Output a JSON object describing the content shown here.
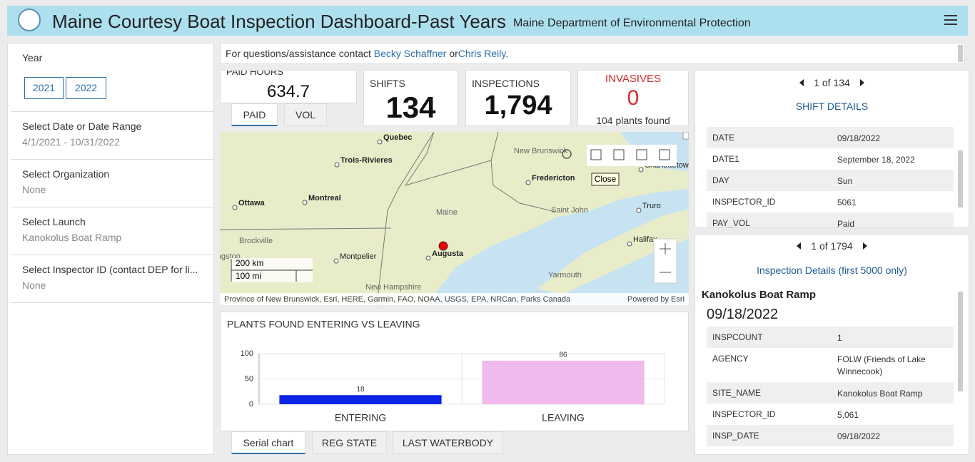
{
  "header": {
    "title": "Maine Courtesy Boat Inspection Dashboard-Past Years",
    "subtitle": "Maine Department of Environmental Protection"
  },
  "sidebar": {
    "year_label": "Year",
    "years": [
      "2021",
      "2022"
    ],
    "filters": [
      {
        "label": "Select Date or Date Range",
        "value": "4/1/2021 - 10/31/2022"
      },
      {
        "label": "Select Organization",
        "value": "None"
      },
      {
        "label": "Select Launch",
        "value": "Kanokolus Boat Ramp"
      },
      {
        "label": "Select Inspector ID (contact DEP for li...",
        "value": "None"
      }
    ]
  },
  "info": {
    "text": "For questions/assistance contact",
    "contacts": [
      "Becky Schaffner",
      "Chris Reily"
    ],
    "joiner": "or",
    "end": "."
  },
  "indicators": {
    "paid_hours": {
      "label": "PAID HOURS",
      "value": "634.7",
      "tabs": [
        "PAID",
        "VOL"
      ]
    },
    "shifts": {
      "label": "SHIFTS",
      "value": "134"
    },
    "inspections": {
      "label": "INSPECTIONS",
      "value": "1,794"
    },
    "invasives": {
      "label": "INVASIVES",
      "value": "0",
      "note": "104 plants found"
    }
  },
  "map": {
    "places": [
      "Quebec",
      "Trois-Rivieres",
      "Montreal",
      "Ottawa",
      "New Brunswick",
      "Fredericton",
      "Saint John",
      "Maine",
      "Augusta",
      "Montpelier",
      "Brockville",
      "Kingston",
      "Truro",
      "Halifax",
      "Yarmouth",
      "New Hampshire",
      "Charlottetown"
    ],
    "scale": [
      "200 km",
      "100 mi"
    ],
    "tooltip": "Close",
    "attribution": "Province of New Brunswick, Esri, HERE, Garmin, FAO, NOAA, USGS, EPA, NRCan, Parks Canada",
    "powered_by": "Powered by Esri"
  },
  "chart_data": {
    "type": "bar",
    "title": "PLANTS FOUND ENTERING VS LEAVING",
    "categories": [
      "ENTERING",
      "LEAVING"
    ],
    "values": [
      18,
      86
    ],
    "colors": [
      "#0b24e8",
      "#f0baec"
    ],
    "ylim": [
      0,
      100
    ],
    "yticks": [
      0,
      50,
      100
    ],
    "grid": true
  },
  "chart_tabs": [
    "Serial chart",
    "REG STATE",
    "LAST WATERBODY"
  ],
  "shift_details": {
    "pager": "1 of 134",
    "title": "SHIFT DETAILS",
    "rows": [
      [
        "DATE",
        "09/18/2022"
      ],
      [
        "DATE1",
        "September 18, 2022"
      ],
      [
        "DAY",
        "Sun"
      ],
      [
        "INSPECTOR_ID",
        "5061"
      ],
      [
        "PAY_VOL",
        "Paid"
      ]
    ]
  },
  "inspection_details": {
    "pager": "1 of 1794",
    "title": "Inspection Details (first 5000 only)",
    "site": "Kanokolus Boat Ramp",
    "date": "09/18/2022",
    "rows": [
      [
        "INSPCOUNT",
        "1"
      ],
      [
        "AGENCY",
        "FOLW (Friends of Lake Winnecook)"
      ],
      [
        "SITE_NAME",
        "Kanokolus Boat Ramp"
      ],
      [
        "INSPECTOR_ID",
        "5,061"
      ],
      [
        "INSP_DATE",
        "09/18/2022"
      ]
    ]
  }
}
